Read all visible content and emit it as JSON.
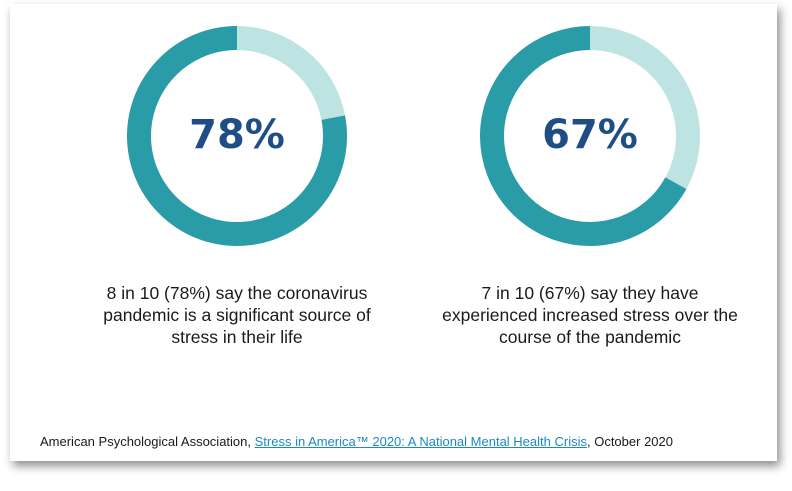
{
  "chart_data": [
    {
      "type": "pie",
      "subtype": "donut",
      "center_label": "78%",
      "value": 78,
      "remainder": 22,
      "colors": {
        "value": "#2a9ca7",
        "remainder": "#bde3e3"
      },
      "caption": [
        "8 in 10 (78%) say the coronavirus",
        "pandemic is a significant source of",
        "stress in their life"
      ]
    },
    {
      "type": "pie",
      "subtype": "donut",
      "center_label": "67%",
      "value": 67,
      "remainder": 33,
      "colors": {
        "value": "#2a9ca7",
        "remainder": "#bde3e3"
      },
      "caption": [
        "7 in 10 (67%) say they have",
        "experienced increased stress over the",
        "course of the pandemic"
      ]
    }
  ],
  "source": {
    "prefix": "American Psychological Association, ",
    "link_text": "Stress in America™ 2020: A National Mental Health Crisis",
    "suffix": ", October 2020"
  },
  "colors": {
    "percent_text": "#1f4e87",
    "link": "#1a8ac7"
  }
}
